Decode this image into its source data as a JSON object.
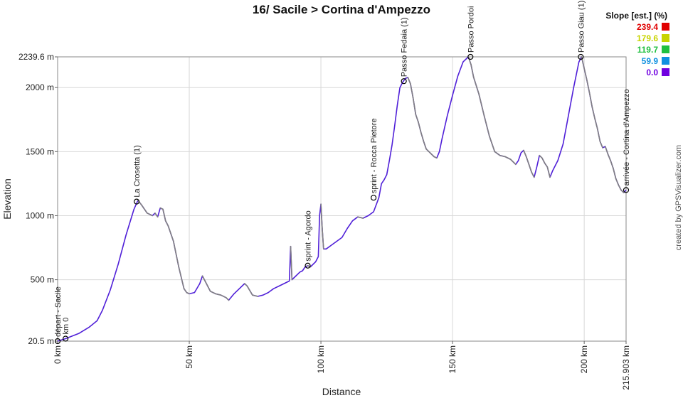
{
  "chart_data": {
    "type": "line",
    "title": "16/ Sacile > Cortina d'Ampezzo",
    "xlabel": "Distance",
    "ylabel": "Elevation",
    "xlim": [
      0,
      215.903
    ],
    "ylim": [
      20.5,
      2239.6
    ],
    "x_tick_labels": [
      {
        "x": 0,
        "label": "0 km"
      },
      {
        "x": 50,
        "label": "50 km"
      },
      {
        "x": 100,
        "label": "100 km"
      },
      {
        "x": 150,
        "label": "150 km"
      },
      {
        "x": 200,
        "label": "200 km"
      },
      {
        "x": 215.903,
        "label": "215.903 km"
      }
    ],
    "y_tick_labels": [
      {
        "y": 20.5,
        "label": "20.5 m"
      },
      {
        "y": 500,
        "label": "500 m"
      },
      {
        "y": 1000,
        "label": "1000 m"
      },
      {
        "y": 1500,
        "label": "1500 m"
      },
      {
        "y": 2000,
        "label": "2000 m"
      },
      {
        "y": 2239.6,
        "label": "2239.6 m"
      }
    ],
    "grid": true,
    "series": [
      {
        "x": [
          0,
          3,
          8,
          12,
          15,
          17,
          20,
          23,
          26,
          29,
          30.5,
          32,
          34,
          36,
          37,
          38,
          39,
          40,
          41,
          42,
          44,
          46,
          48,
          49,
          50,
          52,
          54,
          55,
          56,
          58,
          60,
          62,
          64,
          65,
          67,
          69,
          71,
          72,
          74,
          76,
          78,
          80,
          82,
          84,
          86,
          88,
          88.5,
          89,
          90,
          92,
          93,
          94,
          95,
          96,
          98,
          99,
          99.5,
          100,
          100.5,
          101,
          102,
          104,
          106,
          108,
          110,
          112,
          114,
          116,
          118,
          120,
          122,
          123,
          124,
          125,
          126,
          127,
          128,
          129,
          130,
          131,
          132,
          133,
          134,
          135,
          136,
          137,
          138,
          139,
          140,
          141,
          142,
          143,
          144,
          145,
          146,
          148,
          150,
          152,
          154,
          156,
          157,
          158,
          160,
          162,
          164,
          166,
          168,
          170,
          172,
          174,
          175,
          176,
          177,
          178,
          179,
          180,
          181,
          182,
          183,
          184,
          185,
          186,
          187,
          188,
          190,
          192,
          194,
          196,
          198,
          199,
          200,
          201,
          202,
          203,
          204,
          205,
          206,
          207,
          208,
          209,
          210,
          211,
          212,
          213,
          214,
          215,
          215.903
        ],
        "y": [
          20.5,
          40,
          80,
          130,
          180,
          260,
          420,
          620,
          850,
          1050,
          1120,
          1080,
          1020,
          1000,
          1020,
          990,
          1060,
          1050,
          960,
          920,
          800,
          600,
          430,
          400,
          390,
          400,
          470,
          530,
          490,
          410,
          390,
          380,
          360,
          340,
          390,
          430,
          470,
          450,
          380,
          370,
          380,
          400,
          430,
          450,
          470,
          490,
          760,
          500,
          520,
          560,
          570,
          600,
          610,
          600,
          640,
          680,
          1000,
          1090,
          900,
          740,
          740,
          770,
          800,
          830,
          900,
          960,
          990,
          980,
          1000,
          1030,
          1140,
          1250,
          1280,
          1320,
          1430,
          1550,
          1700,
          1860,
          2000,
          2040,
          2070,
          2080,
          2030,
          1920,
          1790,
          1730,
          1650,
          1580,
          1520,
          1500,
          1480,
          1460,
          1450,
          1500,
          1600,
          1780,
          1940,
          2090,
          2200,
          2239.6,
          2180,
          2080,
          1950,
          1780,
          1620,
          1500,
          1470,
          1460,
          1440,
          1400,
          1430,
          1490,
          1510,
          1460,
          1400,
          1340,
          1300,
          1380,
          1470,
          1450,
          1410,
          1380,
          1300,
          1350,
          1430,
          1560,
          1780,
          2000,
          2200,
          2239.6,
          2150,
          2060,
          1960,
          1850,
          1760,
          1680,
          1580,
          1530,
          1540,
          1480,
          1430,
          1370,
          1290,
          1240,
          1200,
          1180,
          1200
        ]
      }
    ],
    "waypoints": [
      {
        "x": 0,
        "y": 20.5,
        "label": "départ - Sacile"
      },
      {
        "x": 3,
        "y": 40,
        "label": "km 0"
      },
      {
        "x": 30,
        "y": 1110,
        "label": "La Crosetta (1)"
      },
      {
        "x": 95,
        "y": 610,
        "label": "sprint - Agordo"
      },
      {
        "x": 120,
        "y": 1140,
        "label": "sprint - Rocca Pietore"
      },
      {
        "x": 131.5,
        "y": 2050,
        "label": "Passo Fedaia (1)"
      },
      {
        "x": 156.8,
        "y": 2239.6,
        "label": "Passo Pordoi"
      },
      {
        "x": 198.7,
        "y": 2239.6,
        "label": "Passo Giau (1)"
      },
      {
        "x": 215.903,
        "y": 1200,
        "label": "arrivée - Cortina d'Ampezzo"
      }
    ],
    "legend": {
      "title": "Slope [est.] (%)",
      "position": "top-right",
      "entries": [
        {
          "label": "239.4",
          "color": "#e00000"
        },
        {
          "label": "179.6",
          "color": "#c8d400"
        },
        {
          "label": "119.7",
          "color": "#20c040"
        },
        {
          "label": "59.9",
          "color": "#1090e0"
        },
        {
          "label": "0.0",
          "color": "#7000e0"
        }
      ]
    },
    "line_colors": {
      "main": "#5020d8",
      "descent": "#808080"
    }
  },
  "credit": "created by GPSVisualizer.com"
}
